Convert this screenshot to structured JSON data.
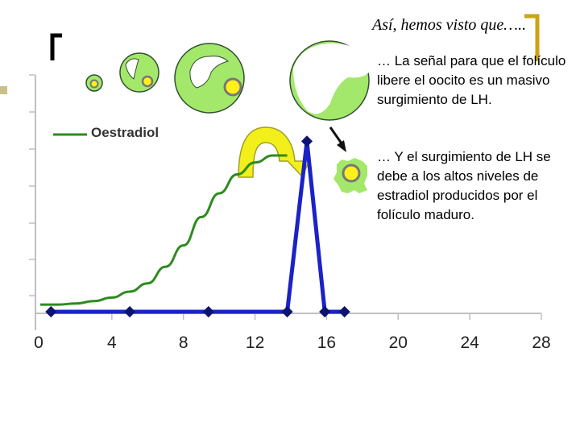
{
  "slide": {
    "title": "Así, hemos visto que…..",
    "bullets": [
      "… La señal para que el folículo libere el oocito es un masivo surgimiento de LH.",
      "… Y el surgimiento de LH se debe a los altos niveles de estradiol producidos por el folículo maduro."
    ]
  },
  "colors": {
    "oestradiol": "#2e8b1e",
    "lh": "#1a22c8",
    "lh_marker": "#0d1470",
    "follicle_fill": "#a3e86a",
    "follicle_stroke": "#2f4f2f",
    "oocyte_fill": "#ffef1a",
    "oocyte_ring": "#888888",
    "arrow_fill": "#f2ef1a",
    "arrow_stroke": "#a0a028",
    "bracket": "#c9a514",
    "axis": "#c0c0c0",
    "accent_square": "#c8c28a"
  },
  "chart_data": {
    "type": "line",
    "xlim": [
      0,
      28
    ],
    "x_ticks": [
      0,
      4,
      8,
      12,
      16,
      20,
      24,
      28
    ],
    "ylim": [
      0,
      100
    ],
    "legend": "top-left",
    "series": [
      {
        "name": "Oestradiol",
        "x": [
          0,
          1,
          2,
          3,
          4,
          5,
          6,
          7,
          8,
          9,
          10,
          11,
          12,
          13,
          13.8
        ],
        "values": [
          3,
          3,
          3.5,
          4.5,
          6,
          8.5,
          12,
          19,
          28,
          40,
          50,
          58,
          63,
          66,
          66
        ]
      },
      {
        "name": "",
        "x": [
          0.6,
          5,
          9.4,
          13.8,
          14.9,
          15.9,
          17
        ],
        "values": [
          0,
          0,
          0,
          0,
          72,
          0,
          0
        ]
      }
    ]
  }
}
